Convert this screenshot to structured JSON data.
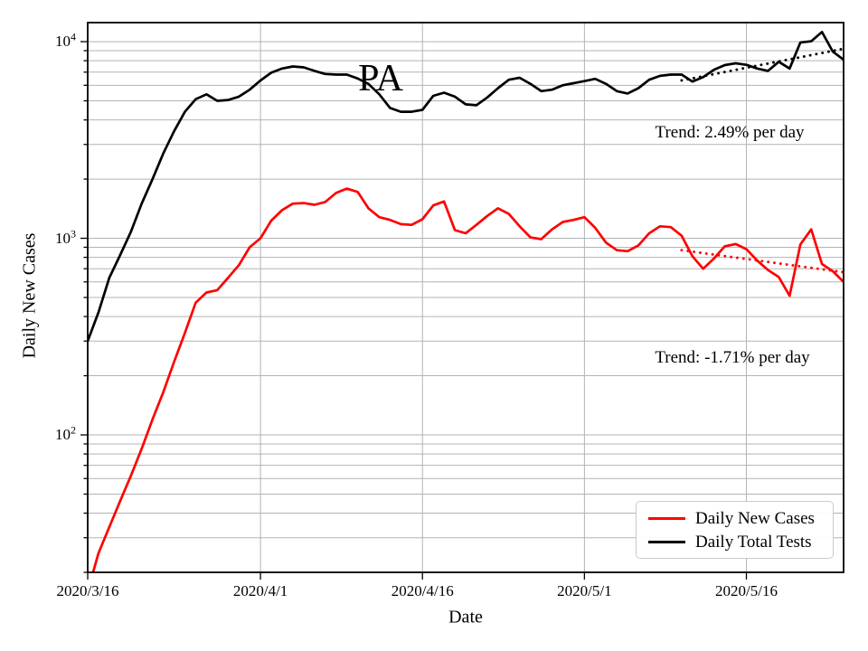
{
  "title": "PA",
  "axes": {
    "x": {
      "label": "Date",
      "ticks": [
        {
          "day": 0,
          "label": "2020/3/16"
        },
        {
          "day": 16,
          "label": "2020/4/1"
        },
        {
          "day": 31,
          "label": "2020/4/16"
        },
        {
          "day": 46,
          "label": "2020/5/1"
        },
        {
          "day": 61,
          "label": "2020/5/16"
        }
      ]
    },
    "y": {
      "label": "Daily New Cases",
      "ticks": [
        {
          "base": "10",
          "sup": "4",
          "value": 10000
        },
        {
          "base": "10",
          "sup": "3",
          "value": 1000
        },
        {
          "base": "10",
          "sup": "2",
          "value": 100
        }
      ]
    }
  },
  "annotations": {
    "trend_tests": "Trend: 2.49% per day",
    "trend_cases": "Trend: -1.71% per day"
  },
  "legend": {
    "items": [
      {
        "label": "Daily New Cases",
        "color": "#ff0000"
      },
      {
        "label": "Daily Total Tests",
        "color": "#000000"
      }
    ]
  },
  "colors": {
    "cases": "#ff0000",
    "tests": "#000000",
    "grid": "#b3b3b3",
    "frame": "#000000"
  },
  "chart_data": {
    "type": "line",
    "title": "PA",
    "xlabel": "Date",
    "ylabel": "Daily New Cases",
    "yscale": "log",
    "ylim": [
      20,
      12500
    ],
    "xlim_days": [
      0,
      70
    ],
    "x_days_from": "2020/3/16",
    "x_step_days": 1,
    "grid": true,
    "x_tick_days": [
      0,
      16,
      31,
      46,
      61
    ],
    "series": [
      {
        "name": "Daily New Cases",
        "color": "#ff0000",
        "values": [
          16,
          25,
          34,
          46,
          62,
          85,
          120,
          165,
          235,
          330,
          470,
          530,
          545,
          630,
          730,
          900,
          1000,
          1230,
          1390,
          1500,
          1510,
          1480,
          1530,
          1700,
          1790,
          1720,
          1420,
          1280,
          1240,
          1180,
          1170,
          1250,
          1470,
          1540,
          1100,
          1060,
          1170,
          1300,
          1420,
          1330,
          1150,
          1010,
          990,
          1110,
          1210,
          1240,
          1280,
          1130,
          950,
          870,
          860,
          920,
          1060,
          1150,
          1140,
          1030,
          810,
          700,
          790,
          910,
          935,
          880,
          770,
          690,
          635,
          510,
          930,
          1110,
          740,
          680,
          600
        ]
      },
      {
        "name": "Daily Total Tests",
        "color": "#000000",
        "values": [
          300,
          420,
          630,
          820,
          1080,
          1500,
          2000,
          2700,
          3500,
          4400,
          5100,
          5400,
          5000,
          5050,
          5250,
          5700,
          6350,
          6950,
          7300,
          7480,
          7400,
          7100,
          6850,
          6800,
          6800,
          6500,
          6100,
          5400,
          4600,
          4400,
          4400,
          4500,
          5300,
          5500,
          5250,
          4800,
          4750,
          5200,
          5800,
          6400,
          6550,
          6100,
          5600,
          5700,
          6000,
          6150,
          6300,
          6470,
          6100,
          5600,
          5450,
          5800,
          6400,
          6700,
          6800,
          6800,
          6270,
          6600,
          7200,
          7600,
          7760,
          7620,
          7300,
          7100,
          7900,
          7300,
          9900,
          10050,
          11200,
          8900,
          8100
        ]
      }
    ],
    "trend_lines": [
      {
        "name": "tests-trend",
        "label": "Trend: 2.49% per day",
        "color": "#000000",
        "style": "dotted",
        "day_start": 55,
        "day_end": 70,
        "value_start": 6350,
        "value_end": 9200
      },
      {
        "name": "cases-trend",
        "label": "Trend: -1.71% per day",
        "color": "#ff0000",
        "style": "dotted",
        "day_start": 55,
        "day_end": 70,
        "value_start": 870,
        "value_end": 672
      }
    ],
    "legend_position": "lower right"
  }
}
